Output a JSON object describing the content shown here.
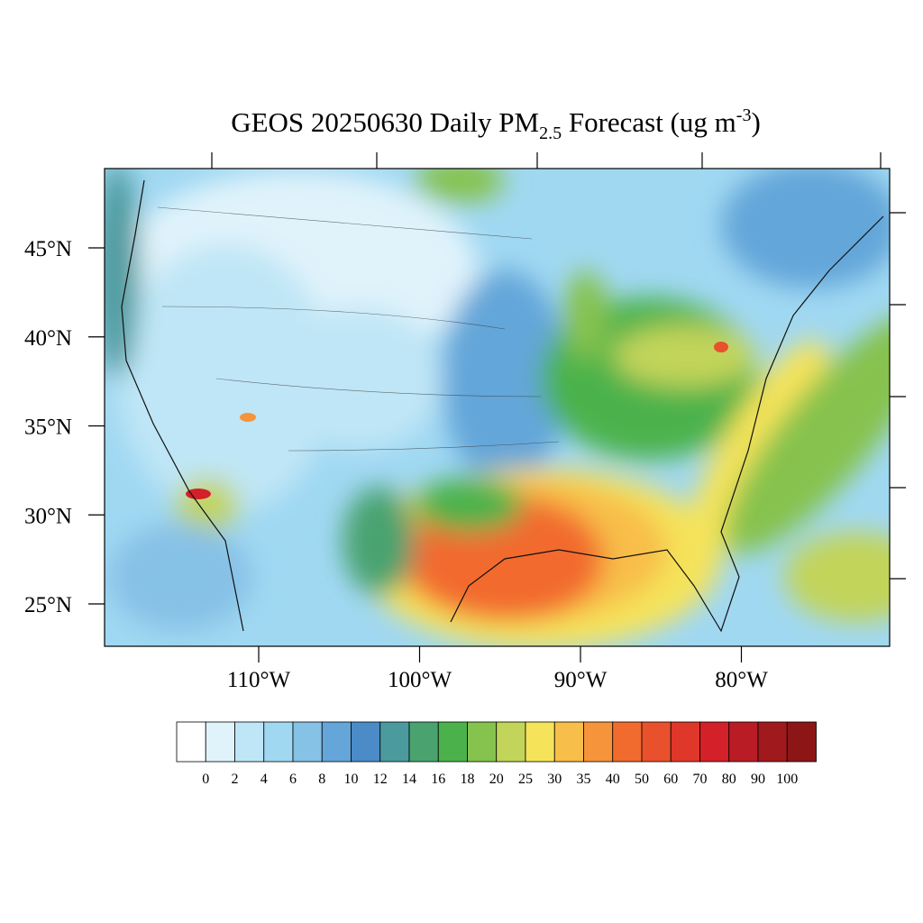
{
  "map": {
    "title": {
      "main": "GEOS 20250630 Daily PM",
      "sub": "2.5",
      "mid": " Forecast (ug m",
      "sup": "-3",
      "end": ")"
    },
    "lat_ticks": [
      {
        "value": 45,
        "label": "45°N"
      },
      {
        "value": 40,
        "label": "40°N"
      },
      {
        "value": 35,
        "label": "35°N"
      },
      {
        "value": 30,
        "label": "30°N"
      },
      {
        "value": 25,
        "label": "25°N"
      }
    ],
    "lon_ticks": [
      {
        "value": -110,
        "label": "110°W"
      },
      {
        "value": -100,
        "label": "100°W"
      },
      {
        "value": -90,
        "label": "90°W"
      },
      {
        "value": -80,
        "label": "80°W"
      }
    ]
  },
  "colorbar": {
    "labels": [
      0,
      2,
      4,
      6,
      8,
      10,
      12,
      14,
      16,
      18,
      20,
      25,
      30,
      35,
      40,
      50,
      60,
      70,
      80,
      90,
      100
    ],
    "colors": [
      "#ffffff",
      "#e0f3fb",
      "#bfe6f6",
      "#a0d8f2",
      "#86c1e6",
      "#64a6d9",
      "#4a8bc8",
      "#4b9a9e",
      "#4aa36f",
      "#4bb24b",
      "#86c24e",
      "#c2d45a",
      "#f5e35a",
      "#f8be4a",
      "#f6943c",
      "#f26b2e",
      "#e9502c",
      "#df3729",
      "#d32029",
      "#b91c24",
      "#a01a1d",
      "#8c1516"
    ]
  }
}
